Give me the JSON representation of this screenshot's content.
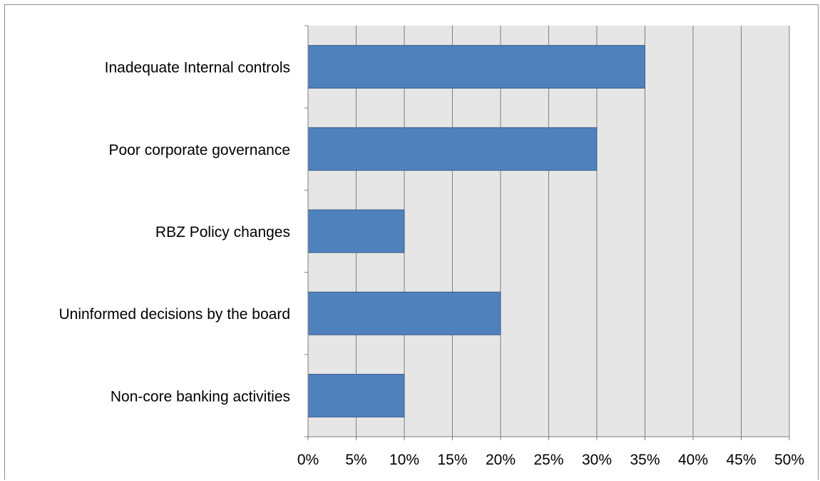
{
  "chart_data": {
    "type": "bar",
    "orientation": "horizontal",
    "categories": [
      "Inadequate Internal controls",
      "Poor corporate governance",
      "RBZ Policy changes",
      "Uninformed decisions by the board",
      "Non-core banking activities"
    ],
    "values": [
      35,
      30,
      10,
      20,
      10
    ],
    "x_ticks": [
      "0%",
      "5%",
      "10%",
      "15%",
      "20%",
      "25%",
      "30%",
      "35%",
      "40%",
      "45%",
      "50%"
    ],
    "xlim": [
      0,
      50
    ],
    "value_unit": "%",
    "grid": "vertical",
    "legend": "none",
    "colors": {
      "bar_fill": "#4f81bd",
      "bar_stroke": "#385d8a",
      "plot_background": "#e6e6e6",
      "gridline": "#7f7f7f",
      "axis": "#7f7f7f"
    }
  }
}
